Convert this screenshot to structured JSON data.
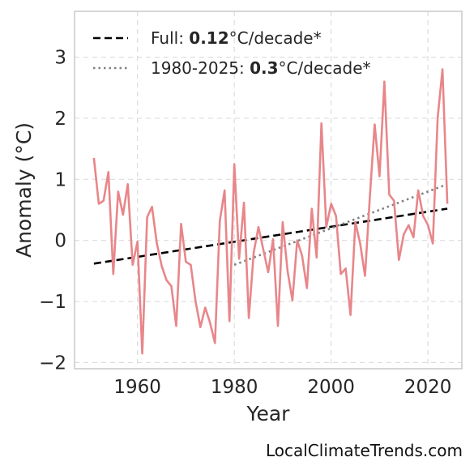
{
  "chart_data": {
    "type": "line",
    "xlabel": "Year",
    "ylabel": "Anomaly (°C)",
    "xlim": [
      1947,
      2027
    ],
    "ylim": [
      -2.1,
      3.75
    ],
    "x_ticks": [
      1960,
      1980,
      2000,
      2020
    ],
    "y_ticks": [
      -2,
      -1,
      0,
      1,
      2,
      3
    ],
    "y_tick_labels": [
      "−2",
      "−1",
      "0",
      "1",
      "2",
      "3"
    ],
    "grid": true,
    "legend_position": "top-left",
    "legend": [
      {
        "prefix": "Full: ",
        "value": "0.12",
        "suffix": "°C/decade*",
        "style": "dashed",
        "color": "#000000"
      },
      {
        "prefix": "1980-2025: ",
        "value": "0.3",
        "suffix": "°C/decade*",
        "style": "dotted",
        "color": "#808080"
      }
    ],
    "series": [
      {
        "color": "#e8868a",
        "x": [
          1951,
          1952,
          1953,
          1954,
          1955,
          1956,
          1957,
          1958,
          1959,
          1960,
          1961,
          1962,
          1963,
          1964,
          1965,
          1966,
          1967,
          1968,
          1969,
          1970,
          1971,
          1972,
          1973,
          1974,
          1975,
          1976,
          1977,
          1978,
          1979,
          1980,
          1981,
          1982,
          1983,
          1984,
          1985,
          1986,
          1987,
          1988,
          1989,
          1990,
          1991,
          1992,
          1993,
          1994,
          1995,
          1996,
          1997,
          1998,
          1999,
          2000,
          2001,
          2002,
          2003,
          2004,
          2005,
          2006,
          2007,
          2008,
          2009,
          2010,
          2011,
          2012,
          2013,
          2014,
          2015,
          2016,
          2017,
          2018,
          2019,
          2020,
          2021,
          2022,
          2023,
          2024
        ],
        "y": [
          1.35,
          0.6,
          0.65,
          1.12,
          -0.55,
          0.8,
          0.42,
          0.92,
          -0.4,
          -0.02,
          -1.85,
          0.38,
          0.55,
          -0.05,
          -0.42,
          -0.65,
          -0.75,
          -1.4,
          0.27,
          -0.35,
          -0.4,
          -1.0,
          -1.42,
          -1.1,
          -1.35,
          -1.68,
          0.32,
          0.82,
          -1.32,
          1.25,
          -0.3,
          0.62,
          -1.27,
          -0.2,
          0.22,
          -0.15,
          -0.52,
          0.02,
          -1.4,
          0.3,
          -0.5,
          -0.98,
          0.0,
          -0.25,
          -0.78,
          0.52,
          -0.28,
          1.92,
          0.22,
          0.6,
          0.4,
          -0.55,
          -0.46,
          -1.22,
          0.3,
          -0.05,
          -0.58,
          0.72,
          1.9,
          1.05,
          2.6,
          0.75,
          0.65,
          -0.32,
          0.1,
          0.25,
          0.05,
          0.82,
          0.4,
          0.25,
          -0.05,
          2.0,
          2.8,
          0.6
        ]
      }
    ],
    "trends": [
      {
        "style": "dashed",
        "color": "#000000",
        "x": [
          1951,
          2024
        ],
        "y": [
          -0.38,
          0.52
        ]
      },
      {
        "style": "dotted",
        "color": "#808080",
        "x": [
          1980,
          2024
        ],
        "y": [
          -0.4,
          0.92
        ]
      }
    ]
  },
  "watermark": "LocalClimateTrends.com"
}
